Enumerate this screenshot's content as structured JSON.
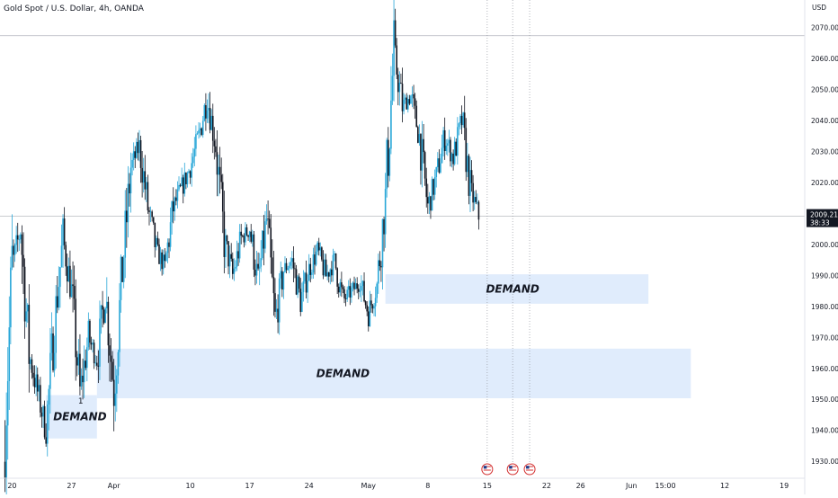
{
  "header": {
    "symbol_line": "Gold Spot / U.S. Dollar, 4h, OANDA"
  },
  "price_axis": {
    "currency": "USD",
    "last_price": "2009.215",
    "countdown": "38:33"
  },
  "colors": {
    "bull": "#29a7d8",
    "bear": "#131722",
    "zone_fill": "#d6e6fb",
    "grid_line": "#b2b5be",
    "last_price_bg": "#131722"
  },
  "chart_data": {
    "type": "candlestick",
    "title": "Gold Spot / U.S. Dollar, 4h, OANDA",
    "ylabel": "USD",
    "ylim": [
      1927,
      2077
    ],
    "yticks": [
      "1930.000",
      "1940.000",
      "1950.000",
      "1960.000",
      "1970.000",
      "1980.000",
      "1990.000",
      "2000.000",
      "2010.000",
      "2020.000",
      "2030.000",
      "2040.000",
      "2050.000",
      "2060.000",
      "2070.000"
    ],
    "ytick_values": [
      1930,
      1940,
      1950,
      1960,
      1970,
      1980,
      1990,
      2000,
      2010,
      2020,
      2030,
      2040,
      2050,
      2060,
      2070
    ],
    "x_date_range": [
      "2024-03-19",
      "2024-06-21"
    ],
    "xticks": [
      {
        "date": "2024-03-20",
        "label": "20"
      },
      {
        "date": "2024-03-27",
        "label": "27"
      },
      {
        "date": "2024-04-01",
        "label": "Apr"
      },
      {
        "date": "2024-04-10",
        "label": "10"
      },
      {
        "date": "2024-04-17",
        "label": "17"
      },
      {
        "date": "2024-04-24",
        "label": "24"
      },
      {
        "date": "2024-05-01",
        "label": "May"
      },
      {
        "date": "2024-05-08",
        "label": "8"
      },
      {
        "date": "2024-05-15",
        "label": "15"
      },
      {
        "date": "2024-05-22",
        "label": "22"
      },
      {
        "date": "2024-05-26",
        "label": "26"
      },
      {
        "date": "2024-06-01",
        "label": "Jun"
      },
      {
        "date": "2024-06-05",
        "label": "15:00"
      },
      {
        "date": "2024-06-12",
        "label": "12"
      },
      {
        "date": "2024-06-19",
        "label": "19"
      }
    ],
    "last_price": 2009.215,
    "horizontal_lines": [
      2067.5,
      2009.2
    ],
    "event_dates": [
      "2024-05-15",
      "2024-05-18",
      "2024-05-20"
    ],
    "zones": [
      {
        "label": "DEMAND",
        "start": "2024-03-24",
        "end": "2024-03-30",
        "low": 1937.5,
        "high": 1951.5
      },
      {
        "label": "DEMAND",
        "start": "2024-03-30",
        "end": "2024-06-08",
        "low": 1950.5,
        "high": 1966.5
      },
      {
        "label": "DEMAND",
        "start": "2024-05-03",
        "end": "2024-06-03",
        "low": 1981,
        "high": 1990.5
      }
    ],
    "annotations": [
      {
        "text": "1",
        "date": "2024-03-28",
        "price": 1949
      }
    ],
    "price_path": [
      [
        "2024-03-19",
        1930
      ],
      [
        "2024-03-20",
        1993
      ],
      [
        "2024-03-21",
        2005
      ],
      [
        "2024-03-22",
        1965
      ],
      [
        "2024-03-24",
        1940
      ],
      [
        "2024-03-25",
        1975
      ],
      [
        "2024-03-26",
        2002
      ],
      [
        "2024-03-27",
        1985
      ],
      [
        "2024-03-28",
        1952
      ],
      [
        "2024-03-29",
        1970
      ],
      [
        "2024-03-30",
        1963
      ],
      [
        "2024-03-31",
        1985
      ],
      [
        "2024-04-01",
        1953
      ],
      [
        "2024-04-02",
        1992
      ],
      [
        "2024-04-03",
        2025
      ],
      [
        "2024-04-04",
        2032
      ],
      [
        "2024-04-05",
        2012
      ],
      [
        "2024-04-06",
        1998
      ],
      [
        "2024-04-07",
        1993
      ],
      [
        "2024-04-08",
        2012
      ],
      [
        "2024-04-10",
        2025
      ],
      [
        "2024-04-11",
        2035
      ],
      [
        "2024-04-12",
        2048
      ],
      [
        "2024-04-13",
        2032
      ],
      [
        "2024-04-14",
        2002
      ],
      [
        "2024-04-15",
        1990
      ],
      [
        "2024-04-16",
        2002
      ],
      [
        "2024-04-17",
        2005
      ],
      [
        "2024-04-18",
        1988
      ],
      [
        "2024-04-19",
        2008
      ],
      [
        "2024-04-20",
        1975
      ],
      [
        "2024-04-21",
        1992
      ],
      [
        "2024-04-22",
        1995
      ],
      [
        "2024-04-23",
        1982
      ],
      [
        "2024-04-24",
        1992
      ],
      [
        "2024-04-25",
        1998
      ],
      [
        "2024-04-26",
        1990
      ],
      [
        "2024-04-27",
        1995
      ],
      [
        "2024-04-28",
        1982
      ],
      [
        "2024-04-29",
        1985
      ],
      [
        "2024-04-30",
        1988
      ],
      [
        "2024-05-01",
        1978
      ],
      [
        "2024-05-02",
        1987
      ],
      [
        "2024-05-03",
        2015
      ],
      [
        "2024-05-04",
        2062
      ],
      [
        "2024-05-05",
        2045
      ],
      [
        "2024-05-06",
        2048
      ],
      [
        "2024-05-07",
        2035
      ],
      [
        "2024-05-08",
        2012
      ],
      [
        "2024-05-09",
        2022
      ],
      [
        "2024-05-10",
        2035
      ],
      [
        "2024-05-11",
        2028
      ],
      [
        "2024-05-12",
        2040
      ],
      [
        "2024-05-13",
        2018
      ],
      [
        "2024-05-14",
        2009.2
      ]
    ]
  },
  "zone_labels": [
    "DEMAND",
    "DEMAND",
    "DEMAND"
  ],
  "annotation_label": "1"
}
